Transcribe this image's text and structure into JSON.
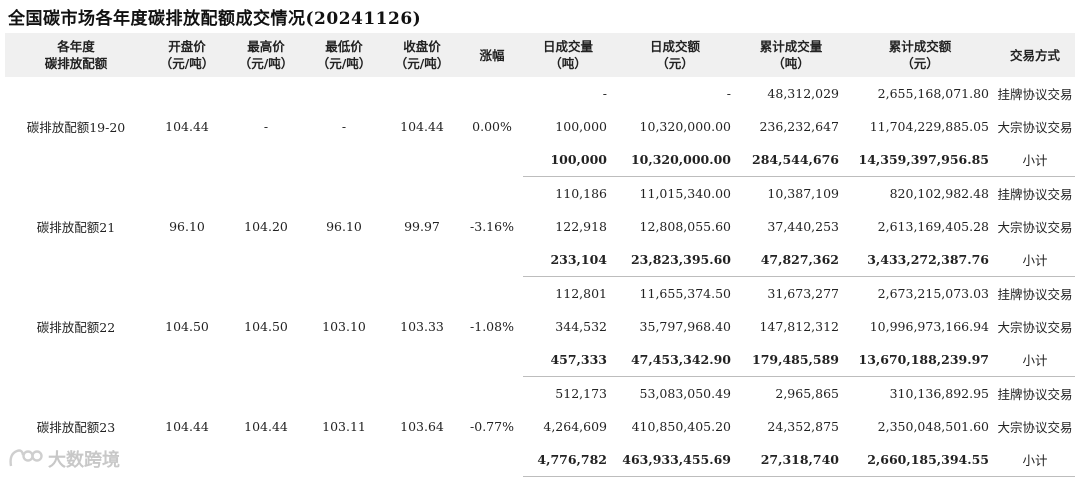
{
  "title": "全国碳市场各年度碳排放配额成交情况(20241126)",
  "headers": [
    [
      "各年度",
      "碳排放配额"
    ],
    [
      "开盘价",
      "（元/吨）"
    ],
    [
      "最高价",
      "（元/吨）"
    ],
    [
      "最低价",
      "（元/吨）"
    ],
    [
      "收盘价",
      "（元/吨）"
    ],
    [
      "涨幅"
    ],
    [
      "日成交量",
      "（吨）"
    ],
    [
      "日成交额",
      "（元）"
    ],
    [
      "累计成交量",
      "（吨）"
    ],
    [
      "累计成交额",
      "（元）"
    ],
    [
      "交易方式"
    ]
  ],
  "groups": [
    {
      "name": "碳排放配额19-20",
      "open": "104.44",
      "high": "-",
      "low": "-",
      "close": "104.44",
      "change": "0.00%",
      "rows": [
        {
          "vol": "-",
          "amt": "-",
          "cum_vol": "48,312,029",
          "cum_amt": "2,655,168,071.80",
          "method": "挂牌协议交易"
        },
        {
          "vol": "100,000",
          "amt": "10,320,000.00",
          "cum_vol": "236,232,647",
          "cum_amt": "11,704,229,885.05",
          "method": "大宗协议交易"
        },
        {
          "vol": "100,000",
          "amt": "10,320,000.00",
          "cum_vol": "284,544,676",
          "cum_amt": "14,359,397,956.85",
          "method": "小计"
        }
      ]
    },
    {
      "name": "碳排放配额21",
      "open": "96.10",
      "high": "104.20",
      "low": "96.10",
      "close": "99.97",
      "change": "-3.16%",
      "rows": [
        {
          "vol": "110,186",
          "amt": "11,015,340.00",
          "cum_vol": "10,387,109",
          "cum_amt": "820,102,982.48",
          "method": "挂牌协议交易"
        },
        {
          "vol": "122,918",
          "amt": "12,808,055.60",
          "cum_vol": "37,440,253",
          "cum_amt": "2,613,169,405.28",
          "method": "大宗协议交易"
        },
        {
          "vol": "233,104",
          "amt": "23,823,395.60",
          "cum_vol": "47,827,362",
          "cum_amt": "3,433,272,387.76",
          "method": "小计"
        }
      ]
    },
    {
      "name": "碳排放配额22",
      "open": "104.50",
      "high": "104.50",
      "low": "103.10",
      "close": "103.33",
      "change": "-1.08%",
      "rows": [
        {
          "vol": "112,801",
          "amt": "11,655,374.50",
          "cum_vol": "31,673,277",
          "cum_amt": "2,673,215,073.03",
          "method": "挂牌协议交易"
        },
        {
          "vol": "344,532",
          "amt": "35,797,968.40",
          "cum_vol": "147,812,312",
          "cum_amt": "10,996,973,166.94",
          "method": "大宗协议交易"
        },
        {
          "vol": "457,333",
          "amt": "47,453,342.90",
          "cum_vol": "179,485,589",
          "cum_amt": "13,670,188,239.97",
          "method": "小计"
        }
      ]
    },
    {
      "name": "碳排放配额23",
      "open": "104.44",
      "high": "104.44",
      "low": "103.11",
      "close": "103.64",
      "change": "-0.77%",
      "rows": [
        {
          "vol": "512,173",
          "amt": "53,083,050.49",
          "cum_vol": "2,965,865",
          "cum_amt": "310,136,892.95",
          "method": "挂牌协议交易"
        },
        {
          "vol": "4,264,609",
          "amt": "410,850,405.20",
          "cum_vol": "24,352,875",
          "cum_amt": "2,350,048,501.60",
          "method": "大宗协议交易"
        },
        {
          "vol": "4,776,782",
          "amt": "463,933,455.69",
          "cum_vol": "27,318,740",
          "cum_amt": "2,660,185,394.55",
          "method": "小计"
        }
      ]
    }
  ],
  "watermark": "大数跨境",
  "colors": {
    "header_bg": "#f0f0f0",
    "divider": "#bdbdbd",
    "watermark": "#c8c8c8"
  }
}
